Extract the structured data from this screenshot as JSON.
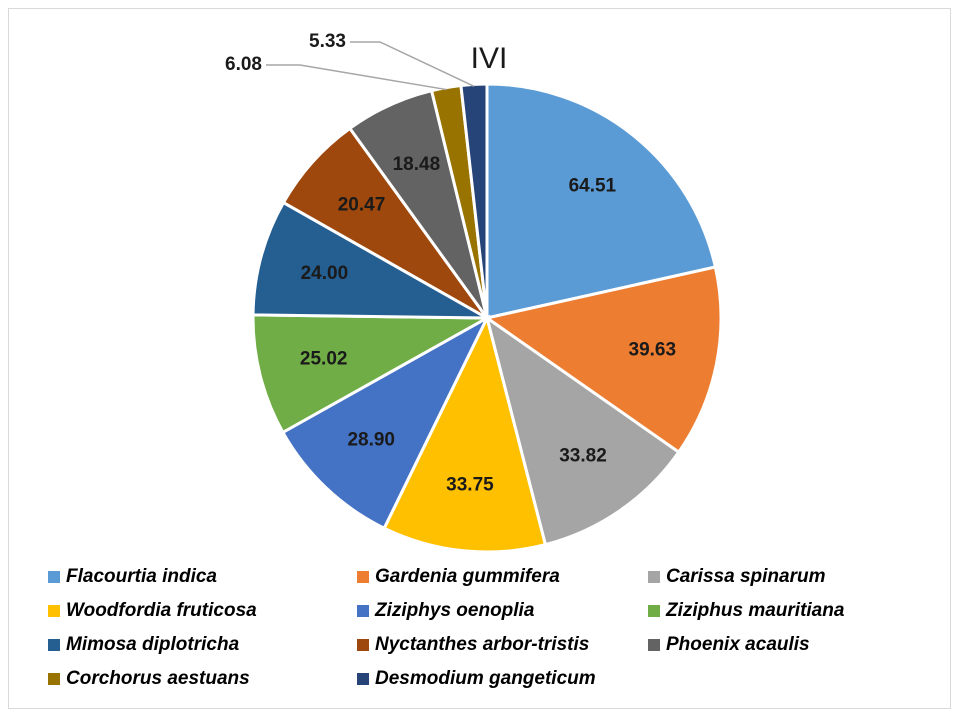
{
  "chart_data": {
    "type": "pie",
    "title": "IVI",
    "categories": [
      "Flacourtia indica",
      "Gardenia gummifera",
      "Carissa spinarum",
      "Woodfordia fruticosa",
      "Ziziphys oenoplia",
      "Ziziphus mauritiana",
      "Mimosa diplotricha",
      "Nyctanthes arbor-tristis",
      "Phoenix acaulis",
      "Corchorus aestuans",
      "Desmodium gangeticum"
    ],
    "values": [
      64.51,
      39.63,
      33.82,
      33.75,
      28.9,
      25.02,
      24.0,
      20.47,
      18.48,
      6.08,
      5.33
    ],
    "value_labels": [
      "64.51",
      "39.63",
      "33.82",
      "33.75",
      "28.90",
      "25.02",
      "24.00",
      "20.47",
      "18.48",
      "6.08",
      "5.33"
    ],
    "colors": [
      "#5b9bd5",
      "#ed7d31",
      "#a5a5a5",
      "#ffc000",
      "#4472c4",
      "#70ad47",
      "#255e91",
      "#9e480e",
      "#636363",
      "#997300",
      "#264478"
    ],
    "legend": "bottom"
  }
}
